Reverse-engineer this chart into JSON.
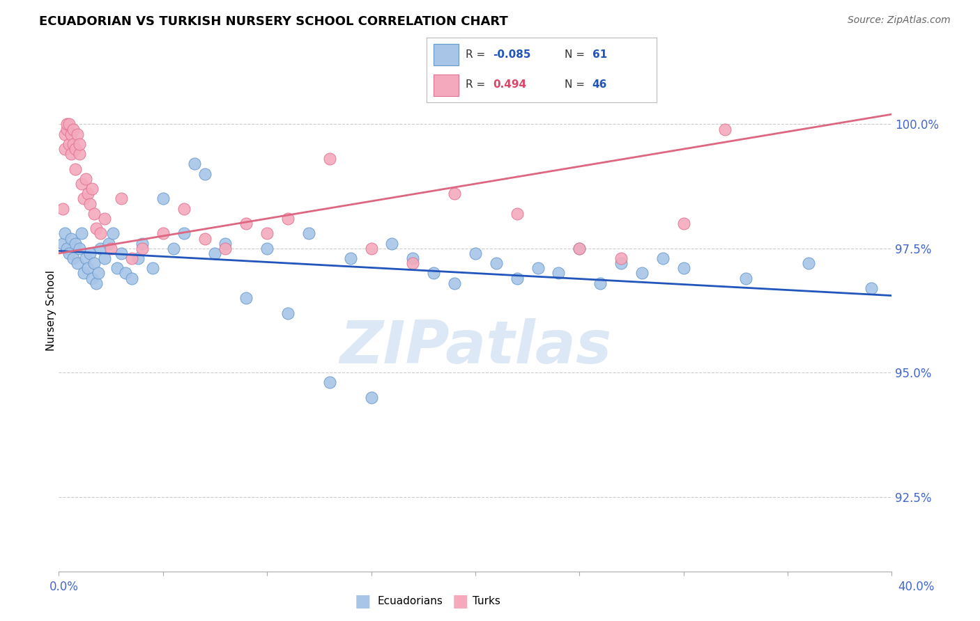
{
  "title": "ECUADORIAN VS TURKISH NURSERY SCHOOL CORRELATION CHART",
  "source": "Source: ZipAtlas.com",
  "ylabel": "Nursery School",
  "xlim": [
    0.0,
    40.0
  ],
  "ylim": [
    91.0,
    101.5
  ],
  "ytick_vals": [
    92.5,
    95.0,
    97.5,
    100.0
  ],
  "ytick_labels": [
    "92.5%",
    "95.0%",
    "97.5%",
    "100.0%"
  ],
  "legend_blue_r": "-0.085",
  "legend_blue_n": "61",
  "legend_pink_r": "0.494",
  "legend_pink_n": "46",
  "blue_scatter_color": "#a8c5e8",
  "blue_edge_color": "#6699cc",
  "pink_scatter_color": "#f4aabc",
  "pink_edge_color": "#e07090",
  "blue_line_color": "#2255bb",
  "pink_line_color": "#dd6680",
  "legend_r_color_blue": "#2255bb",
  "legend_r_color_pink": "#dd4466",
  "legend_n_color": "#2255bb",
  "watermark_color": "#dce8f5",
  "blue_x": [
    0.2,
    0.3,
    0.4,
    0.5,
    0.6,
    0.7,
    0.8,
    0.9,
    1.0,
    1.1,
    1.2,
    1.3,
    1.4,
    1.5,
    1.6,
    1.7,
    1.8,
    1.9,
    2.0,
    2.2,
    2.4,
    2.6,
    2.8,
    3.0,
    3.2,
    3.5,
    3.8,
    4.0,
    4.5,
    5.0,
    5.5,
    6.0,
    6.5,
    7.0,
    7.5,
    8.0,
    9.0,
    10.0,
    11.0,
    12.0,
    13.0,
    14.0,
    15.0,
    16.0,
    17.0,
    18.0,
    19.0,
    20.0,
    21.0,
    22.0,
    23.0,
    24.0,
    25.0,
    26.0,
    27.0,
    28.0,
    29.0,
    30.0,
    33.0,
    36.0,
    39.0
  ],
  "blue_y": [
    97.6,
    97.8,
    97.5,
    97.4,
    97.7,
    97.3,
    97.6,
    97.2,
    97.5,
    97.8,
    97.0,
    97.3,
    97.1,
    97.4,
    96.9,
    97.2,
    96.8,
    97.0,
    97.5,
    97.3,
    97.6,
    97.8,
    97.1,
    97.4,
    97.0,
    96.9,
    97.3,
    97.6,
    97.1,
    98.5,
    97.5,
    97.8,
    99.2,
    99.0,
    97.4,
    97.6,
    96.5,
    97.5,
    96.2,
    97.8,
    94.8,
    97.3,
    94.5,
    97.6,
    97.3,
    97.0,
    96.8,
    97.4,
    97.2,
    96.9,
    97.1,
    97.0,
    97.5,
    96.8,
    97.2,
    97.0,
    97.3,
    97.1,
    96.9,
    97.2,
    96.7
  ],
  "pink_x": [
    0.2,
    0.3,
    0.3,
    0.4,
    0.4,
    0.5,
    0.5,
    0.6,
    0.6,
    0.7,
    0.7,
    0.8,
    0.8,
    0.9,
    1.0,
    1.0,
    1.1,
    1.2,
    1.3,
    1.4,
    1.5,
    1.6,
    1.7,
    1.8,
    2.0,
    2.2,
    2.5,
    3.0,
    3.5,
    4.0,
    5.0,
    6.0,
    7.0,
    8.0,
    9.0,
    10.0,
    11.0,
    13.0,
    15.0,
    17.0,
    19.0,
    22.0,
    25.0,
    27.0,
    30.0,
    32.0
  ],
  "pink_y": [
    98.3,
    99.8,
    99.5,
    99.9,
    100.0,
    99.6,
    100.0,
    99.8,
    99.4,
    99.9,
    99.6,
    99.5,
    99.1,
    99.8,
    99.4,
    99.6,
    98.8,
    98.5,
    98.9,
    98.6,
    98.4,
    98.7,
    98.2,
    97.9,
    97.8,
    98.1,
    97.5,
    98.5,
    97.3,
    97.5,
    97.8,
    98.3,
    97.7,
    97.5,
    98.0,
    97.8,
    98.1,
    99.3,
    97.5,
    97.2,
    98.6,
    98.2,
    97.5,
    97.3,
    98.0,
    99.9
  ],
  "blue_line_x0": 0.0,
  "blue_line_y0": 97.45,
  "blue_line_x1": 40.0,
  "blue_line_y1": 96.55,
  "pink_line_x0": 0.0,
  "pink_line_y0": 97.4,
  "pink_line_x1": 40.0,
  "pink_line_y1": 100.2
}
